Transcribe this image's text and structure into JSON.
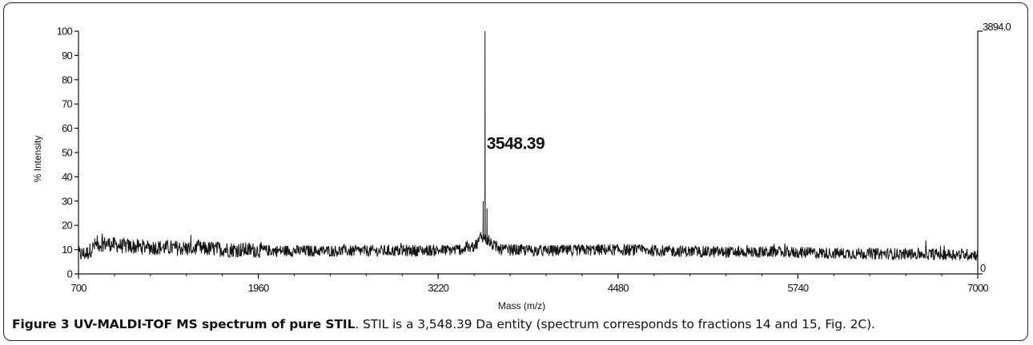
{
  "chart_data": {
    "type": "line",
    "xlabel": "Mass (m/z)",
    "ylabel": "% Intensity",
    "xlim": [
      700,
      7000
    ],
    "ylim": [
      0,
      100
    ],
    "x_ticks": [
      "700",
      "1960",
      "3220",
      "4480",
      "5740",
      "7000"
    ],
    "y_ticks": [
      "0",
      "10",
      "20",
      "30",
      "40",
      "50",
      "60",
      "70",
      "80",
      "90",
      "100"
    ],
    "right_axis_max_label": "3894.0",
    "right_axis_min_label": "0",
    "annotations": [
      {
        "text": "3548.39",
        "x": 3548.39,
        "y": 100
      }
    ],
    "baseline": [
      [
        700,
        8
      ],
      [
        760,
        8.5
      ],
      [
        820,
        12
      ],
      [
        900,
        12.5
      ],
      [
        1000,
        11.5
      ],
      [
        1200,
        11
      ],
      [
        1500,
        10.5
      ],
      [
        1800,
        10
      ],
      [
        2100,
        9.5
      ],
      [
        2500,
        9.5
      ],
      [
        2900,
        9.5
      ],
      [
        3300,
        9.8
      ],
      [
        3450,
        10.5
      ],
      [
        3500,
        13
      ],
      [
        3520,
        16
      ],
      [
        3600,
        12
      ],
      [
        3650,
        10
      ],
      [
        4000,
        9.5
      ],
      [
        4400,
        10
      ],
      [
        4800,
        9.5
      ],
      [
        5200,
        9
      ],
      [
        5600,
        9
      ],
      [
        6000,
        8.5
      ],
      [
        6500,
        8.2
      ],
      [
        7000,
        8
      ]
    ],
    "peaks": [
      {
        "x": 3548.39,
        "y": 100
      },
      {
        "x": 3535,
        "y": 30
      },
      {
        "x": 3562,
        "y": 27
      },
      {
        "x": 3575,
        "y": 16
      }
    ]
  },
  "caption": {
    "label": "Figure 3 UV-MALDI-TOF MS spectrum of pure STIL",
    "text": ". STIL is a 3,548.39 Da entity (spectrum corresponds to fractions 14 and 15, Fig. 2C)."
  }
}
